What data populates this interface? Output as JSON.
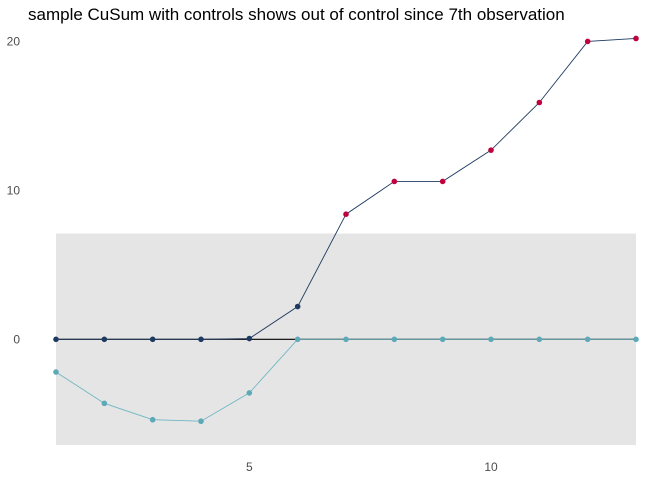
{
  "chart_data": {
    "type": "line",
    "title": "sample CuSum with controls shows out of control since 7th observation",
    "xlabel": "",
    "ylabel": "",
    "x": [
      1,
      2,
      3,
      4,
      5,
      6,
      7,
      8,
      9,
      10,
      11,
      12,
      13
    ],
    "xlim": [
      1,
      13
    ],
    "ylim": [
      -7.5,
      20.5
    ],
    "x_ticks": [
      5,
      10
    ],
    "y_ticks": [
      0,
      10,
      20
    ],
    "control_band": {
      "lower": -7.1,
      "upper": 7.1,
      "color": "#e5e5e5"
    },
    "zero_line": 0,
    "grid": false,
    "series": [
      {
        "role": "upper",
        "values": [
          0,
          0,
          0,
          0,
          0.05,
          2.2,
          8.4,
          10.6,
          10.6,
          12.7,
          15.9,
          20.0,
          20.2
        ],
        "line_color": "#1f3a60",
        "in_control_color": "#1f3a60",
        "out_of_control_color": "#c0003c"
      },
      {
        "role": "lower",
        "values": [
          -2.2,
          -4.3,
          -5.4,
          -5.5,
          -3.6,
          0,
          0,
          0,
          0,
          0,
          0,
          0,
          0
        ],
        "line_color": "#6fb7c4",
        "in_control_color": "#5ea9b8",
        "out_of_control_color": "#c0003c"
      }
    ]
  }
}
